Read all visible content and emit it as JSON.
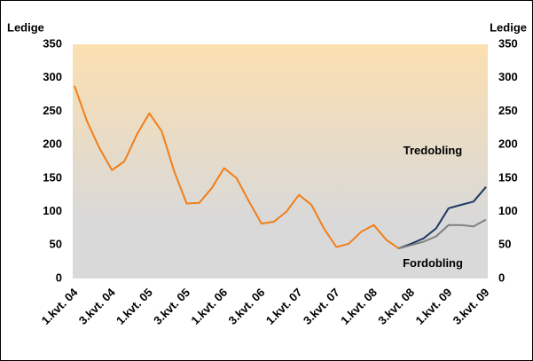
{
  "chart_data": {
    "type": "line",
    "y_label": "Ledige",
    "y2_label": "Ledige",
    "categories": [
      "1.kvt. 04",
      null,
      null,
      "3.kvt. 04",
      null,
      null,
      "1.kvt. 05",
      null,
      null,
      "3.kvt. 05",
      null,
      null,
      "1.kvt. 06",
      null,
      null,
      "3.kvt. 06",
      null,
      null,
      "1.kvt. 07",
      null,
      null,
      "3.kvt. 07",
      null,
      null,
      "1.kvt. 08",
      null,
      null,
      "3.kvt. 08",
      null,
      null,
      "1.kvt. 09",
      null,
      null,
      "3.kvt. 09"
    ],
    "series": [
      {
        "color": "#f07f1a",
        "values": [
          288,
          235,
          195,
          162,
          175,
          215,
          247,
          220,
          160,
          112,
          113,
          135,
          165,
          150,
          115,
          82,
          85,
          100,
          125,
          110,
          75,
          47,
          52,
          70,
          80,
          58,
          45,
          null,
          null,
          null,
          null,
          null,
          null,
          null
        ]
      },
      {
        "name": "Tredobling",
        "color": "#1f3864",
        "axis": "y2",
        "values": [
          null,
          null,
          null,
          null,
          null,
          null,
          null,
          null,
          null,
          null,
          null,
          null,
          null,
          null,
          null,
          null,
          null,
          null,
          null,
          null,
          null,
          null,
          null,
          null,
          null,
          null,
          45,
          52,
          60,
          75,
          105,
          110,
          115,
          137
        ]
      },
      {
        "name": "Fordobling",
        "color": "#808080",
        "axis": "y2",
        "values": [
          null,
          null,
          null,
          null,
          null,
          null,
          null,
          null,
          null,
          null,
          null,
          null,
          null,
          null,
          null,
          null,
          null,
          null,
          null,
          null,
          null,
          null,
          null,
          null,
          null,
          null,
          45,
          50,
          55,
          63,
          80,
          80,
          78,
          88
        ]
      }
    ],
    "ylim": [
      0,
      350
    ],
    "yticks": [
      0,
      50,
      100,
      150,
      200,
      250,
      300,
      350
    ],
    "y2lim": [
      0,
      350
    ],
    "y2ticks": [
      0,
      50,
      100,
      150,
      200,
      250,
      300,
      350
    ]
  }
}
